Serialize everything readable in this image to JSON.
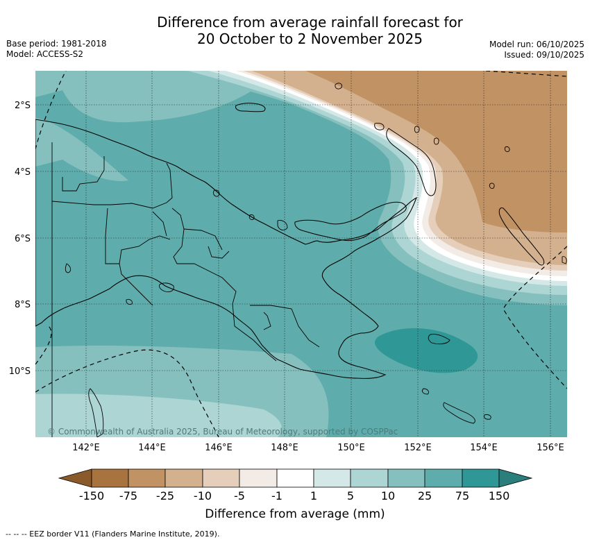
{
  "title_line1": "Difference from average rainfall forecast for",
  "title_line2": "20 October to 2 November 2025",
  "base_period": "Base period: 1981-2018",
  "model": "Model: ACCESS-S2",
  "model_run": "Model run: 06/10/2025",
  "issued": "Issued: 09/10/2025",
  "copyright": "© Commonwealth of Australia 2025, Bureau of Meteorology, supported by COSPPac",
  "colorbar_label": "Difference from average (mm)",
  "footnote": "--  --  -- EEZ border V11 (Flanders Marine Institute, 2019).",
  "lat_ticks": [
    "2°S",
    "4°S",
    "6°S",
    "8°S",
    "10°S"
  ],
  "lon_ticks": [
    "142°E",
    "144°E",
    "146°E",
    "148°E",
    "150°E",
    "152°E",
    "154°E",
    "156°E"
  ],
  "colorbar": {
    "ticks": [
      "-150",
      "-75",
      "-25",
      "-10",
      "-5",
      "-1",
      "1",
      "5",
      "10",
      "25",
      "75",
      "150"
    ],
    "colors": [
      "#8b5a2b",
      "#a8733f",
      "#c19264",
      "#d3b08e",
      "#e6cfba",
      "#f2ebe6",
      "#ffffff",
      "#d3e8e7",
      "#acd5d4",
      "#85c0bf",
      "#5eacab",
      "#2f9896",
      "#2a7e7c"
    ]
  }
}
